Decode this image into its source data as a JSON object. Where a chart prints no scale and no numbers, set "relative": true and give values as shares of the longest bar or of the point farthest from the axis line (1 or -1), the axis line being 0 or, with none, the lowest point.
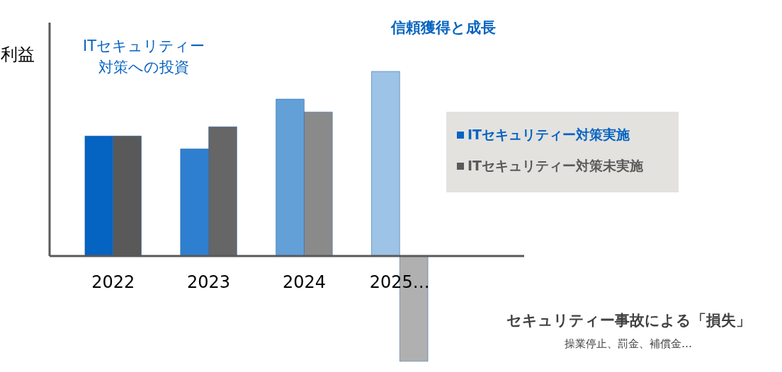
{
  "chart_data": {
    "type": "bar",
    "relative": true,
    "ylabel": "利益",
    "categories": [
      "2022",
      "2023",
      "2024",
      "2025…"
    ],
    "series": [
      {
        "name": "ITセキュリティー対策実施",
        "color": "#0563c1",
        "colors": [
          "#0563c1",
          "#2e7fd0",
          "#63a0d8",
          "#9dc3e6"
        ],
        "values": [
          0.65,
          0.58,
          0.85,
          1
        ]
      },
      {
        "name": "ITセキュリティー対策未実施",
        "color": "#595959",
        "colors": [
          "#595959",
          "#666666",
          "#8a8a8a",
          "#b0b0b0"
        ],
        "values": [
          0.65,
          0.7,
          0.78,
          -0.57
        ]
      }
    ],
    "legend": "right",
    "grid": false,
    "annotations": [
      "ITセキュリティー",
      "対策への投資",
      "信頼獲得と成長",
      "セキュリティー事故による「損失」",
      "操業停止、罰金、補償金…"
    ]
  }
}
